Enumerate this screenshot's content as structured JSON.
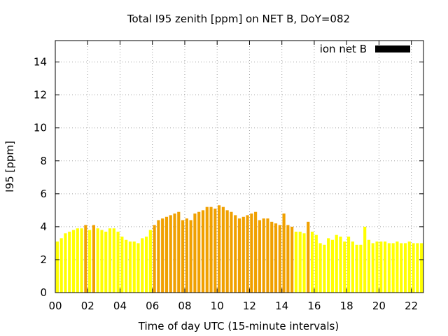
{
  "chart_data": {
    "type": "bar",
    "title": "Total I95 zenith [ppm] on NET B, DoY=082",
    "xlabel": "Time of day UTC (15-minute intervals)",
    "ylabel": "I95 [ppm]",
    "xlim": [
      0,
      22.75
    ],
    "ylim": [
      0,
      15.3
    ],
    "x_ticks": [
      "00",
      "02",
      "04",
      "06",
      "08",
      "10",
      "12",
      "14",
      "16",
      "18",
      "20",
      "22"
    ],
    "y_ticks": [
      "0",
      "2",
      "4",
      "6",
      "8",
      "10",
      "12",
      "14"
    ],
    "grid": true,
    "legend": {
      "position": "top-right",
      "entries": [
        {
          "label": "ion net B",
          "color": "#000000"
        }
      ]
    },
    "bar_colors": {
      "low": "#ffff00",
      "mid": "#f0e020",
      "high": "#f0a000"
    },
    "series": [
      {
        "name": "ion net B",
        "x_hours_start": 0,
        "x_step_hours": 0.25,
        "values": [
          3.1,
          3.3,
          3.6,
          3.7,
          3.8,
          3.9,
          3.9,
          4.1,
          3.8,
          4.1,
          3.9,
          3.8,
          3.7,
          3.9,
          3.9,
          3.7,
          3.4,
          3.2,
          3.1,
          3.1,
          3.0,
          3.3,
          3.4,
          3.8,
          4.1,
          4.4,
          4.5,
          4.6,
          4.7,
          4.8,
          4.9,
          4.4,
          4.5,
          4.4,
          4.8,
          4.9,
          5.0,
          5.2,
          5.2,
          5.1,
          5.3,
          5.2,
          5.0,
          4.9,
          4.7,
          4.5,
          4.6,
          4.7,
          4.8,
          4.9,
          4.4,
          4.5,
          4.5,
          4.3,
          4.2,
          4.1,
          4.8,
          4.1,
          4.0,
          3.7,
          3.7,
          3.6,
          4.3,
          3.7,
          3.5,
          3.0,
          2.9,
          3.3,
          3.2,
          3.5,
          3.4,
          3.1,
          3.4,
          3.1,
          2.9,
          2.9,
          4.0,
          3.2,
          3.0,
          3.1,
          3.1,
          3.1,
          3.0,
          3.0,
          3.1,
          3.0,
          3.0,
          3.1,
          3.0,
          3.0,
          3.0
        ],
        "level": [
          "low",
          "low",
          "low",
          "low",
          "low",
          "low",
          "low",
          "high",
          "low",
          "high",
          "low",
          "low",
          "low",
          "low",
          "low",
          "low",
          "low",
          "low",
          "low",
          "low",
          "low",
          "low",
          "low",
          "low",
          "high",
          "high",
          "high",
          "high",
          "high",
          "high",
          "high",
          "high",
          "high",
          "high",
          "high",
          "high",
          "high",
          "high",
          "high",
          "high",
          "high",
          "high",
          "high",
          "high",
          "high",
          "high",
          "high",
          "high",
          "high",
          "high",
          "high",
          "high",
          "high",
          "high",
          "high",
          "high",
          "high",
          "high",
          "high",
          "low",
          "low",
          "low",
          "high",
          "low",
          "low",
          "low",
          "low",
          "low",
          "low",
          "low",
          "low",
          "low",
          "low",
          "low",
          "low",
          "low",
          "low",
          "low",
          "low",
          "low",
          "low",
          "low",
          "low",
          "low",
          "low",
          "low",
          "low",
          "low",
          "low",
          "low",
          "low"
        ]
      }
    ]
  }
}
